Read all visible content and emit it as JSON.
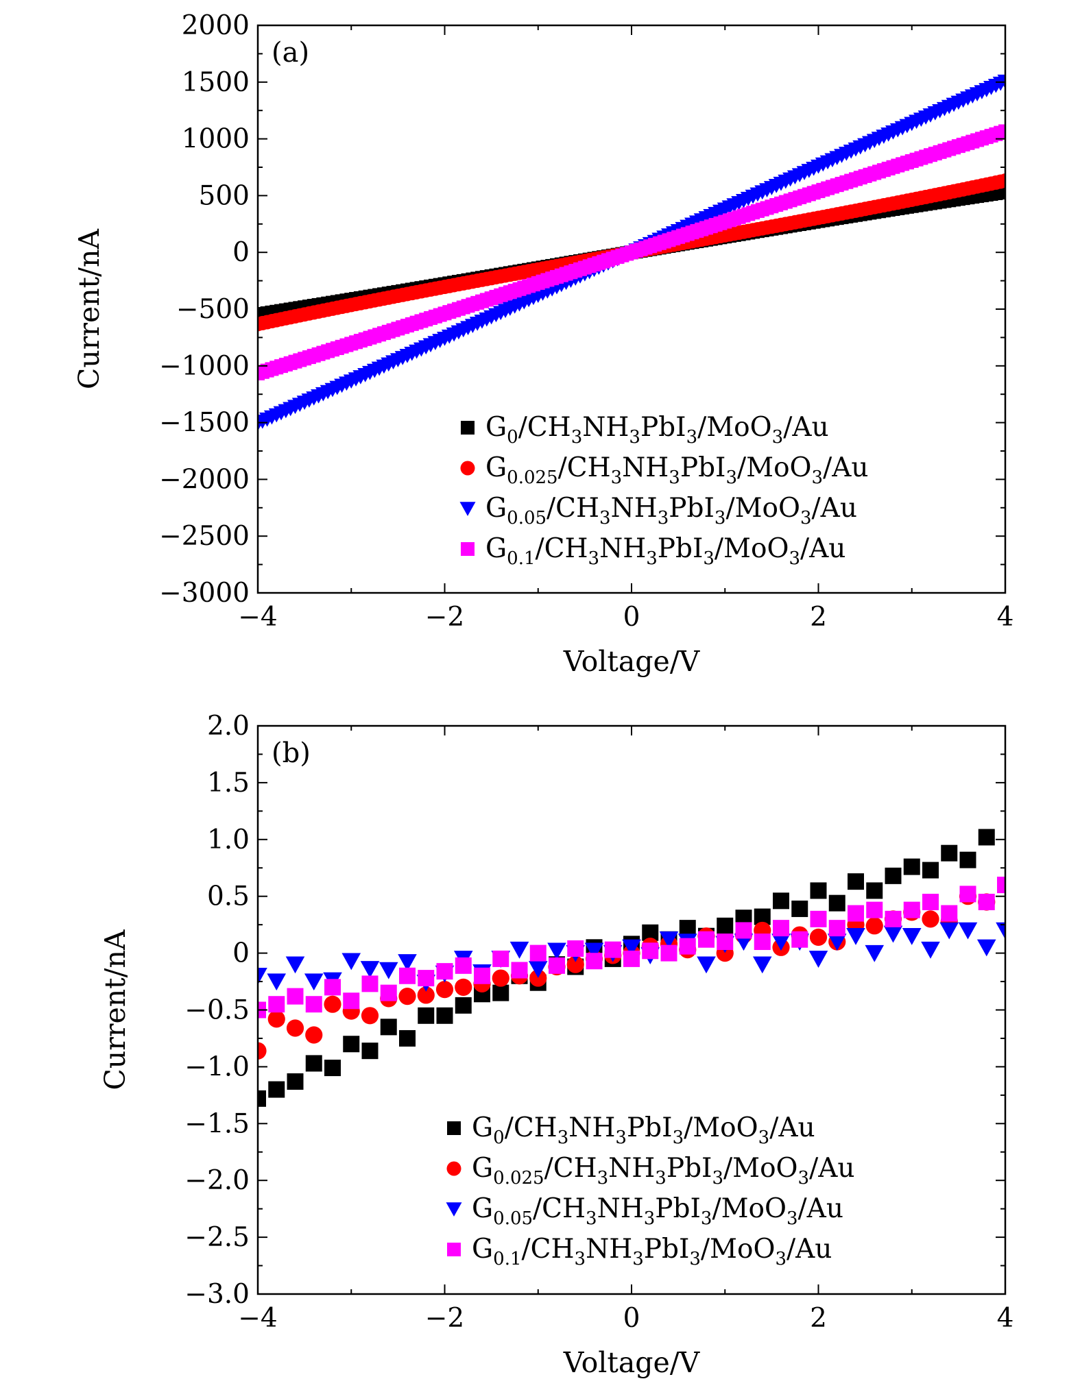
{
  "chart_data": [
    {
      "type": "scatter",
      "panel_label": "(a)",
      "xlabel": "Voltage/V",
      "ylabel": "Current/nA",
      "xlim": [
        -4,
        4
      ],
      "ylim": [
        -3000,
        2000
      ],
      "x_ticks": [
        -4,
        -2,
        0,
        2,
        4
      ],
      "x_tick_labels": [
        "−4",
        "−2",
        "0",
        "2",
        "4"
      ],
      "y_ticks": [
        2000,
        1500,
        1000,
        500,
        0,
        -500,
        -1000,
        -1500,
        -2000,
        -2500,
        -3000
      ],
      "y_tick_labels": [
        "2000",
        "1500",
        "1000",
        "500",
        "0",
        "−500",
        "−1000",
        "−1500",
        "−2000",
        "−2500",
        "−3000"
      ],
      "legend_position": "bottom-right",
      "series": [
        {
          "name": "G0/CH3NH3PbI3/MoO3/Au",
          "label_main": "G",
          "label_sub": "0",
          "color": "#000000",
          "marker": "square",
          "x_range": [
            -4,
            4
          ],
          "n_points": 161,
          "model": {
            "a": 140,
            "b": -0.5,
            "c": -0.3
          },
          "summary": {
            "x": [
              -4,
              -2,
              0,
              2,
              4
            ],
            "y": [
              -450,
              -215,
              0,
              200,
              440
            ]
          }
        },
        {
          "name": "G0.025/CH3NH3PbI3/MoO3/Au",
          "label_main": "G",
          "label_sub": "0.025",
          "color": "#ff0000",
          "marker": "circle",
          "x_range": [
            -4,
            4
          ],
          "n_points": 161,
          "model": {
            "a": 150,
            "b": 0,
            "c": 0.5
          },
          "summary": {
            "x": [
              -4,
              -2,
              0,
              2,
              4
            ],
            "y": [
              -560,
              -250,
              0,
              250,
              520
            ]
          }
        },
        {
          "name": "G0.05/CH3NH3PbI3/MoO3/Au",
          "label_main": "G",
          "label_sub": "0.05",
          "color": "#0000ff",
          "marker": "triangle-down",
          "x_range": [
            -4,
            4
          ],
          "n_points": 161,
          "model": {
            "a": 380,
            "b": 0,
            "c": -0.2
          },
          "summary": {
            "x": [
              -4,
              -2,
              0,
              2,
              4
            ],
            "y": [
              -1320,
              -700,
              0,
              740,
              1470
            ]
          }
        },
        {
          "name": "G0.1/CH3NH3PbI3/MoO3/Au",
          "label_main": "G",
          "label_sub": "0.1",
          "color": "#ff00ff",
          "marker": "square",
          "x_range": [
            -4,
            4
          ],
          "n_points": 161,
          "model": {
            "a": 270,
            "b": 0,
            "c": -0.2
          },
          "summary": {
            "x": [
              -4,
              -2,
              0,
              2,
              4
            ],
            "y": [
              -1120,
              -520,
              0,
              540,
              1030
            ]
          }
        }
      ]
    },
    {
      "type": "scatter",
      "panel_label": "(b)",
      "xlabel": "Voltage/V",
      "ylabel": "Current/nA",
      "xlim": [
        -4,
        4
      ],
      "ylim": [
        -3.0,
        2.0
      ],
      "x_ticks": [
        -4,
        -2,
        0,
        2,
        4
      ],
      "x_tick_labels": [
        "−4",
        "−2",
        "0",
        "2",
        "4"
      ],
      "y_ticks": [
        2.0,
        1.5,
        1.0,
        0.5,
        0,
        -0.5,
        -1.0,
        -1.5,
        -2.0,
        -2.5,
        -3.0
      ],
      "y_tick_labels": [
        "2.0",
        "1.5",
        "1.0",
        "0.5",
        "0",
        "−0.5",
        "−1.0",
        "−1.5",
        "−2.0",
        "−2.5",
        "−3.0"
      ],
      "legend_position": "bottom-right",
      "series": [
        {
          "name": "G0/CH3NH3PbI3/MoO3/Au",
          "label_main": "G",
          "label_sub": "0",
          "color": "#000000",
          "marker": "square",
          "x": [
            -4.0,
            -3.8,
            -3.6,
            -3.4,
            -3.2,
            -3.0,
            -2.8,
            -2.6,
            -2.4,
            -2.2,
            -2.0,
            -1.8,
            -1.6,
            -1.4,
            -1.2,
            -1.0,
            -0.8,
            -0.6,
            -0.4,
            -0.2,
            0.0,
            0.2,
            0.4,
            0.6,
            0.8,
            1.0,
            1.2,
            1.4,
            1.6,
            1.8,
            2.0,
            2.2,
            2.4,
            2.6,
            2.8,
            3.0,
            3.2,
            3.4,
            3.6,
            3.8
          ],
          "y": [
            -1.28,
            -1.2,
            -1.13,
            -0.97,
            -1.01,
            -0.8,
            -0.86,
            -0.65,
            -0.75,
            -0.55,
            -0.55,
            -0.46,
            -0.36,
            -0.35,
            -0.2,
            -0.26,
            -0.1,
            -0.12,
            0.05,
            -0.05,
            0.08,
            0.18,
            0.12,
            0.22,
            0.15,
            0.24,
            0.31,
            0.32,
            0.46,
            0.39,
            0.55,
            0.44,
            0.63,
            0.55,
            0.68,
            0.76,
            0.73,
            0.88,
            0.82,
            1.02
          ]
        },
        {
          "name": "G0.025/CH3NH3PbI3/MoO3/Au",
          "label_main": "G",
          "label_sub": "0.025",
          "color": "#ff0000",
          "marker": "circle",
          "x": [
            -4.0,
            -3.8,
            -3.6,
            -3.4,
            -3.2,
            -3.0,
            -2.8,
            -2.6,
            -2.4,
            -2.2,
            -2.0,
            -1.8,
            -1.6,
            -1.4,
            -1.2,
            -1.0,
            -0.8,
            -0.6,
            -0.4,
            -0.2,
            0.0,
            0.2,
            0.4,
            0.6,
            0.8,
            1.0,
            1.2,
            1.4,
            1.6,
            1.8,
            2.0,
            2.2,
            2.4,
            2.6,
            2.8,
            3.0,
            3.2,
            3.4,
            3.6,
            3.8
          ],
          "y": [
            -0.86,
            -0.58,
            -0.66,
            -0.72,
            -0.45,
            -0.51,
            -0.55,
            -0.4,
            -0.38,
            -0.37,
            -0.32,
            -0.3,
            -0.27,
            -0.22,
            -0.2,
            -0.22,
            -0.12,
            -0.1,
            -0.05,
            -0.02,
            0.0,
            0.06,
            0.08,
            0.03,
            0.15,
            0.0,
            0.16,
            0.2,
            0.05,
            0.16,
            0.14,
            0.1,
            0.25,
            0.24,
            0.3,
            0.36,
            0.3,
            0.28,
            0.5,
            0.45
          ]
        },
        {
          "name": "G0.05/CH3NH3PbI3/MoO3/Au",
          "label_main": "G",
          "label_sub": "0.05",
          "color": "#0000ff",
          "marker": "triangle-down",
          "x": [
            -4.0,
            -3.8,
            -3.6,
            -3.4,
            -3.2,
            -3.0,
            -2.8,
            -2.6,
            -2.4,
            -2.2,
            -2.0,
            -1.8,
            -1.6,
            -1.4,
            -1.2,
            -1.0,
            -0.8,
            -0.6,
            -0.4,
            -0.2,
            0.0,
            0.2,
            0.4,
            0.6,
            0.8,
            1.0,
            1.2,
            1.4,
            1.6,
            1.8,
            2.0,
            2.2,
            2.4,
            2.6,
            2.8,
            3.0,
            3.2,
            3.4,
            3.6,
            3.8,
            4.0
          ],
          "y": [
            -0.2,
            -0.25,
            -0.1,
            -0.25,
            -0.24,
            -0.07,
            -0.14,
            -0.15,
            -0.08,
            -0.26,
            -0.18,
            -0.05,
            -0.17,
            -0.05,
            0.03,
            -0.14,
            0.02,
            0.0,
            0.02,
            0.0,
            0.05,
            -0.02,
            0.12,
            0.1,
            -0.1,
            0.08,
            0.1,
            -0.1,
            0.1,
            0.1,
            -0.05,
            0.1,
            0.15,
            0.0,
            0.17,
            0.15,
            0.03,
            0.2,
            0.2,
            0.05,
            0.2
          ]
        },
        {
          "name": "G0.1/CH3NH3PbI3/MoO3/Au",
          "label_main": "G",
          "label_sub": "0.1",
          "color": "#ff00ff",
          "marker": "square",
          "x": [
            -4.0,
            -3.8,
            -3.6,
            -3.4,
            -3.2,
            -3.0,
            -2.8,
            -2.6,
            -2.4,
            -2.2,
            -2.0,
            -1.8,
            -1.6,
            -1.4,
            -1.2,
            -1.0,
            -0.8,
            -0.6,
            -0.4,
            -0.2,
            0.0,
            0.2,
            0.4,
            0.6,
            0.8,
            1.0,
            1.2,
            1.4,
            1.6,
            1.8,
            2.0,
            2.2,
            2.4,
            2.6,
            2.8,
            3.0,
            3.2,
            3.4,
            3.6,
            3.8,
            4.0
          ],
          "y": [
            -0.5,
            -0.45,
            -0.38,
            -0.45,
            -0.3,
            -0.42,
            -0.27,
            -0.35,
            -0.2,
            -0.22,
            -0.16,
            -0.11,
            -0.2,
            -0.05,
            -0.15,
            0.0,
            -0.11,
            0.04,
            -0.07,
            0.03,
            -0.05,
            0.02,
            0.0,
            0.06,
            0.12,
            0.1,
            0.2,
            0.1,
            0.22,
            0.12,
            0.3,
            0.22,
            0.35,
            0.38,
            0.3,
            0.38,
            0.45,
            0.35,
            0.52,
            0.45,
            0.6
          ]
        }
      ]
    }
  ]
}
